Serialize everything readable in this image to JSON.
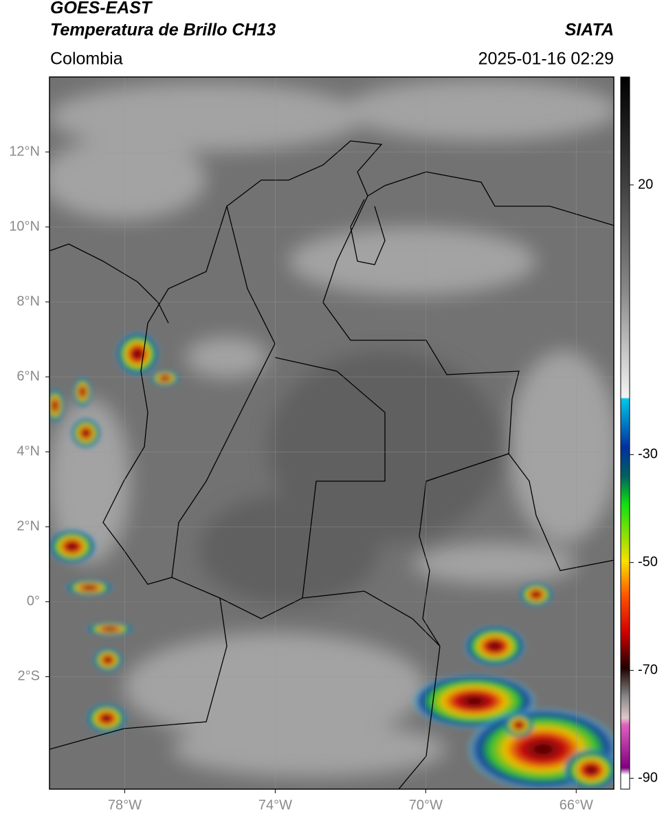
{
  "header": {
    "title": "GOES-EAST",
    "subtitle": "Temperatura de Brillo CH13",
    "source": "SIATA",
    "region": "Colombia",
    "datetime": "2025-01-16 02:29"
  },
  "map": {
    "xlim": [
      -80,
      -65
    ],
    "ylim": [
      -5,
      14
    ],
    "xticks": [
      {
        "value": -78,
        "label": "78°W"
      },
      {
        "value": -74,
        "label": "74°W"
      },
      {
        "value": -70,
        "label": "70°W"
      },
      {
        "value": -66,
        "label": "66°W"
      }
    ],
    "yticks": [
      {
        "value": -2,
        "label": "2°S"
      },
      {
        "value": 0,
        "label": "0°"
      },
      {
        "value": 2,
        "label": "2°N"
      },
      {
        "value": 4,
        "label": "4°N"
      },
      {
        "value": 6,
        "label": "6°N"
      },
      {
        "value": 8,
        "label": "8°N"
      },
      {
        "value": 10,
        "label": "10°N"
      },
      {
        "value": 12,
        "label": "12°N"
      }
    ],
    "grid": true
  },
  "colorbar": {
    "lim": [
      -92,
      40
    ],
    "ticks": [
      20,
      -30,
      -50,
      -70,
      -90
    ]
  }
}
